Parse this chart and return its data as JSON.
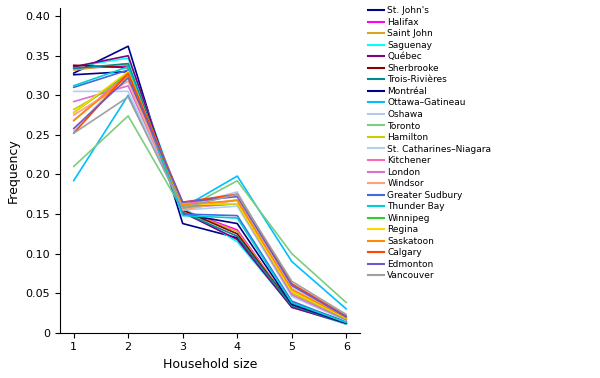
{
  "cities": [
    "St. John's",
    "Halifax",
    "Saint John",
    "Saguenay",
    "Québec",
    "Sherbrooke",
    "Trois-Rivières",
    "Montréal",
    "Ottawa–Gatineau",
    "Oshawa",
    "Toronto",
    "Hamilton",
    "St. Catharines–Niagara",
    "Kitchener",
    "London",
    "Windsor",
    "Greater Sudbury",
    "Thunder Bay",
    "Winnipeg",
    "Regina",
    "Saskatoon",
    "Calgary",
    "Edmonton",
    "Vancouver"
  ],
  "colors": [
    "#00008B",
    "#FF00FF",
    "#DAA520",
    "#00FFFF",
    "#800080",
    "#8B0000",
    "#008B8B",
    "#00008B",
    "#00BFFF",
    "#B8C8E8",
    "#7CCD7C",
    "#CDCD00",
    "#B0D0F0",
    "#FF69B4",
    "#DA70D6",
    "#FFA07A",
    "#4169E1",
    "#00CED1",
    "#32CD32",
    "#FFD700",
    "#FF8C00",
    "#FF4500",
    "#6A5ACD",
    "#A0A0A0"
  ],
  "data": {
    "St. John's": [
      0.328,
      0.362,
      0.138,
      0.12,
      0.038,
      0.014
    ],
    "Halifax": [
      0.334,
      0.337,
      0.155,
      0.13,
      0.033,
      0.011
    ],
    "Saint John": [
      0.332,
      0.34,
      0.155,
      0.128,
      0.034,
      0.011
    ],
    "Saguenay": [
      0.336,
      0.347,
      0.158,
      0.115,
      0.033,
      0.011
    ],
    "Québec": [
      0.336,
      0.35,
      0.152,
      0.118,
      0.032,
      0.012
    ],
    "Sherbrooke": [
      0.338,
      0.335,
      0.155,
      0.125,
      0.034,
      0.013
    ],
    "Trois-Rivières": [
      0.334,
      0.34,
      0.152,
      0.122,
      0.034,
      0.012
    ],
    "Montréal": [
      0.326,
      0.33,
      0.15,
      0.138,
      0.036,
      0.012
    ],
    "Ottawa–Gatineau": [
      0.192,
      0.3,
      0.158,
      0.198,
      0.09,
      0.03
    ],
    "Oshawa": [
      0.255,
      0.33,
      0.16,
      0.178,
      0.058,
      0.019
    ],
    "Toronto": [
      0.21,
      0.274,
      0.155,
      0.192,
      0.1,
      0.038
    ],
    "Hamilton": [
      0.282,
      0.322,
      0.158,
      0.168,
      0.05,
      0.017
    ],
    "St. Catharines–Niagara": [
      0.305,
      0.305,
      0.155,
      0.16,
      0.046,
      0.015
    ],
    "Kitchener": [
      0.268,
      0.328,
      0.162,
      0.175,
      0.06,
      0.02
    ],
    "London": [
      0.292,
      0.312,
      0.158,
      0.163,
      0.048,
      0.016
    ],
    "Windsor": [
      0.275,
      0.318,
      0.155,
      0.168,
      0.054,
      0.018
    ],
    "Greater Sudbury": [
      0.31,
      0.332,
      0.15,
      0.148,
      0.04,
      0.013
    ],
    "Thunder Bay": [
      0.312,
      0.336,
      0.148,
      0.145,
      0.038,
      0.013
    ],
    "Winnipeg": [
      0.278,
      0.328,
      0.16,
      0.163,
      0.052,
      0.017
    ],
    "Regina": [
      0.278,
      0.33,
      0.162,
      0.163,
      0.052,
      0.018
    ],
    "Saskatoon": [
      0.268,
      0.325,
      0.162,
      0.167,
      0.055,
      0.019
    ],
    "Calgary": [
      0.252,
      0.328,
      0.165,
      0.175,
      0.062,
      0.021
    ],
    "Edmonton": [
      0.258,
      0.322,
      0.165,
      0.172,
      0.06,
      0.02
    ],
    "Vancouver": [
      0.252,
      0.298,
      0.158,
      0.175,
      0.065,
      0.023
    ]
  },
  "x": [
    1,
    2,
    3,
    4,
    5,
    6
  ],
  "xlabel": "Household size",
  "ylabel": "Frequency",
  "ylim": [
    0,
    0.41
  ],
  "yticks": [
    0,
    0.05,
    0.1,
    0.15,
    0.2,
    0.25,
    0.3,
    0.35,
    0.4
  ],
  "ytick_labels": [
    "0",
    "0.05",
    "0.10",
    "0.15",
    "0.20",
    "0.25",
    "0.30",
    "0.35",
    "0.40"
  ],
  "xticks": [
    1,
    2,
    3,
    4,
    5,
    6
  ]
}
